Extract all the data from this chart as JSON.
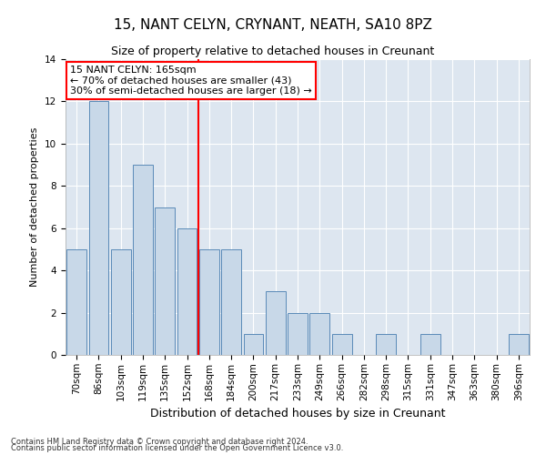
{
  "title": "15, NANT CELYN, CRYNANT, NEATH, SA10 8PZ",
  "subtitle": "Size of property relative to detached houses in Creunant",
  "xlabel": "Distribution of detached houses by size in Creunant",
  "ylabel": "Number of detached properties",
  "bins": [
    "70sqm",
    "86sqm",
    "103sqm",
    "119sqm",
    "135sqm",
    "152sqm",
    "168sqm",
    "184sqm",
    "200sqm",
    "217sqm",
    "233sqm",
    "249sqm",
    "266sqm",
    "282sqm",
    "298sqm",
    "315sqm",
    "331sqm",
    "347sqm",
    "363sqm",
    "380sqm",
    "396sqm"
  ],
  "values": [
    5,
    12,
    5,
    9,
    7,
    6,
    5,
    5,
    1,
    3,
    2,
    2,
    1,
    0,
    1,
    0,
    1,
    0,
    0,
    0,
    1
  ],
  "bar_color": "#c8d8e8",
  "bar_edge_color": "#5a8ab8",
  "vline_x": 5.5,
  "vline_color": "red",
  "annotation_title": "15 NANT CELYN: 165sqm",
  "annotation_line1": "← 70% of detached houses are smaller (43)",
  "annotation_line2": "30% of semi-detached houses are larger (18) →",
  "annotation_box_color": "red",
  "annotation_bg": "white",
  "ylim": [
    0,
    14
  ],
  "yticks": [
    0,
    2,
    4,
    6,
    8,
    10,
    12,
    14
  ],
  "footer1": "Contains HM Land Registry data © Crown copyright and database right 2024.",
  "footer2": "Contains public sector information licensed under the Open Government Licence v3.0.",
  "bg_color": "#dde6f0",
  "grid_color": "#ffffff",
  "title_fontsize": 11,
  "subtitle_fontsize": 9,
  "ylabel_fontsize": 8,
  "xlabel_fontsize": 9,
  "tick_fontsize": 7.5,
  "annot_fontsize": 8
}
